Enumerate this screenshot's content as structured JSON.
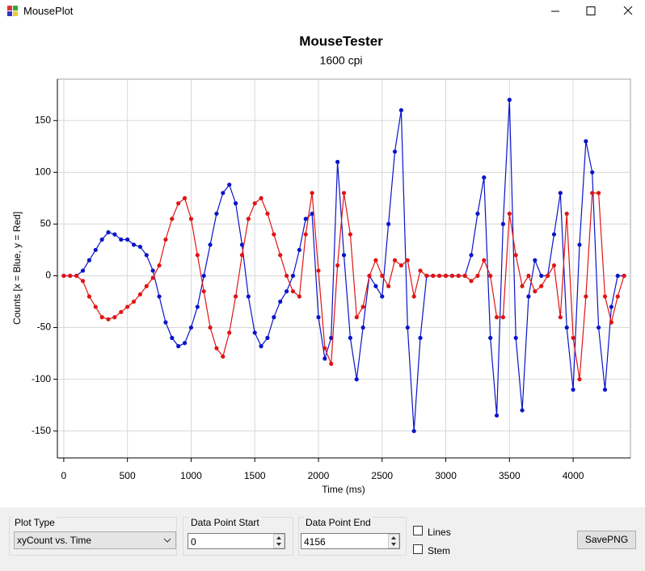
{
  "window": {
    "title": "MousePlot"
  },
  "chart_data": {
    "type": "line",
    "title": "MouseTester",
    "subtitle": "1600 cpi",
    "xlabel": "Time (ms)",
    "ylabel": "Counts [x = Blue, y = Red]",
    "xlim": [
      -50,
      4450
    ],
    "ylim": [
      -176,
      190
    ],
    "xticks": [
      0,
      500,
      1000,
      1500,
      2000,
      2500,
      3000,
      3500,
      4000
    ],
    "yticks": [
      -150,
      -100,
      -50,
      0,
      50,
      100,
      150
    ],
    "grid": true,
    "markers": true,
    "x": [
      0,
      50,
      100,
      150,
      200,
      250,
      300,
      350,
      400,
      450,
      500,
      550,
      600,
      650,
      700,
      750,
      800,
      850,
      900,
      950,
      1000,
      1050,
      1100,
      1150,
      1200,
      1250,
      1300,
      1350,
      1400,
      1450,
      1500,
      1550,
      1600,
      1650,
      1700,
      1750,
      1800,
      1850,
      1900,
      1950,
      2000,
      2050,
      2100,
      2150,
      2200,
      2250,
      2300,
      2350,
      2400,
      2450,
      2500,
      2550,
      2600,
      2650,
      2700,
      2750,
      2800,
      2850,
      2900,
      2950,
      3000,
      3050,
      3100,
      3150,
      3200,
      3250,
      3300,
      3350,
      3400,
      3450,
      3500,
      3550,
      3600,
      3650,
      3700,
      3750,
      3800,
      3850,
      3900,
      3950,
      4000,
      4050,
      4100,
      4150,
      4200,
      4250,
      4300,
      4350,
      4400
    ],
    "series": [
      {
        "color": "#0a14c8",
        "values": [
          0,
          0,
          0,
          5,
          15,
          25,
          35,
          42,
          40,
          35,
          35,
          30,
          28,
          20,
          5,
          -20,
          -45,
          -60,
          -68,
          -65,
          -50,
          -30,
          0,
          30,
          60,
          80,
          88,
          70,
          30,
          -20,
          -55,
          -68,
          -60,
          -40,
          -25,
          -15,
          0,
          25,
          55,
          60,
          -40,
          -80,
          -60,
          110,
          20,
          -60,
          -100,
          -50,
          0,
          -10,
          -20,
          50,
          120,
          160,
          -50,
          -150,
          -60,
          0,
          0,
          0,
          0,
          0,
          0,
          0,
          20,
          60,
          95,
          -60,
          -135,
          50,
          170,
          -60,
          -130,
          -20,
          15,
          0,
          0,
          40,
          80,
          -50,
          -110,
          30,
          130,
          100,
          -50,
          -110,
          -30,
          0,
          0
        ]
      },
      {
        "color": "#e01414",
        "values": [
          0,
          0,
          0,
          -5,
          -20,
          -30,
          -40,
          -42,
          -40,
          -35,
          -30,
          -25,
          -18,
          -10,
          -2,
          10,
          35,
          55,
          70,
          75,
          55,
          20,
          -15,
          -50,
          -70,
          -78,
          -55,
          -20,
          20,
          55,
          70,
          75,
          60,
          40,
          20,
          0,
          -15,
          -20,
          40,
          80,
          5,
          -70,
          -85,
          10,
          80,
          40,
          -40,
          -30,
          0,
          15,
          0,
          -10,
          15,
          10,
          15,
          -20,
          5,
          0,
          0,
          0,
          0,
          0,
          0,
          0,
          -5,
          0,
          15,
          0,
          -40,
          -40,
          60,
          20,
          -10,
          0,
          -15,
          -10,
          0,
          10,
          -40,
          60,
          -60,
          -100,
          -20,
          80,
          80,
          -20,
          -45,
          -20,
          0
        ]
      }
    ]
  },
  "controls": {
    "plot_type": {
      "label": "Plot Type",
      "value": "xyCount vs. Time"
    },
    "start": {
      "label": "Data Point Start",
      "value": 0
    },
    "end": {
      "label": "Data Point End",
      "value": 4156
    },
    "lines": {
      "label": "Lines"
    },
    "stem": {
      "label": "Stem"
    },
    "save": {
      "label": "SavePNG"
    }
  }
}
